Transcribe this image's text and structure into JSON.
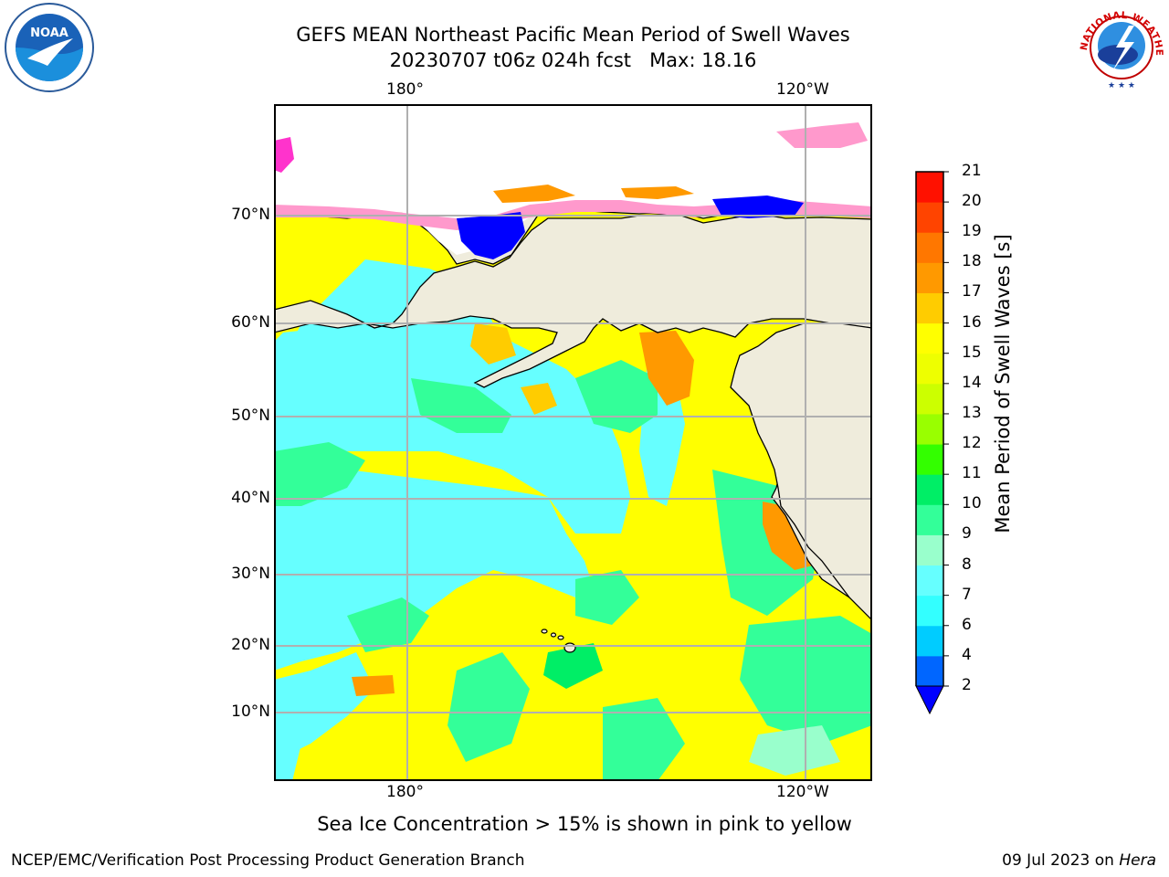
{
  "title_line1": "GEFS MEAN Northeast Pacific Mean Period of Swell Waves",
  "title_line2": "20230707 t06z 024h fcst   Max: 18.16",
  "logos": {
    "noaa_text": "NOAA",
    "nws_text": "NATIONAL WEATHER SERVICE"
  },
  "map": {
    "lon_labels": [
      "180°",
      "120°W"
    ],
    "lat_labels": [
      "70°N",
      "60°N",
      "50°N",
      "40°N",
      "30°N",
      "20°N",
      "10°N"
    ],
    "land_color": "#efecdc",
    "ocean_dominant_colors": [
      "#ffff00",
      "#33ff99",
      "#66ffff"
    ]
  },
  "colorbar": {
    "title": "Mean Period of Swell Waves [s]",
    "ticks": [
      "2",
      "4",
      "6",
      "7",
      "8",
      "9",
      "10",
      "11",
      "12",
      "13",
      "14",
      "15",
      "16",
      "17",
      "18",
      "19",
      "20",
      "21"
    ],
    "colors": [
      "#0066ff",
      "#00ccff",
      "#33ffff",
      "#66ffff",
      "#99ffcc",
      "#33ff99",
      "#00ee66",
      "#33ff00",
      "#99ff00",
      "#ccff00",
      "#eeff00",
      "#ffff00",
      "#ffcc00",
      "#ff9900",
      "#ff7700",
      "#ff4400",
      "#ff1100"
    ],
    "extend_color": "#0000ff"
  },
  "note": "Sea Ice Concentration > 15% is shown in pink to yellow",
  "footer_left": "NCEP/EMC/Verification Post Processing Product Generation Branch",
  "footer_right_date": "09 Jul 2023 on",
  "footer_right_host": "Hera"
}
